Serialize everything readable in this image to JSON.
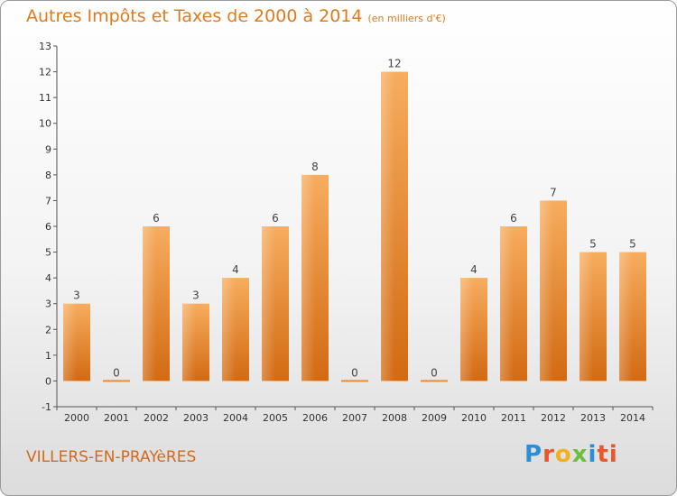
{
  "chart_data": {
    "type": "bar",
    "title": "Autres Impôts et Taxes de 2000 à 2014",
    "subtitle": "(en milliers d'€)",
    "categories": [
      "2000",
      "2001",
      "2002",
      "2003",
      "2004",
      "2005",
      "2006",
      "2007",
      "2008",
      "2009",
      "2010",
      "2011",
      "2012",
      "2013",
      "2014"
    ],
    "values": [
      3,
      0,
      6,
      3,
      4,
      6,
      8,
      0,
      12,
      0,
      4,
      6,
      7,
      5,
      5
    ],
    "ylim": [
      -1,
      13
    ],
    "yticks": [
      -1,
      0,
      1,
      2,
      3,
      4,
      5,
      6,
      7,
      8,
      9,
      10,
      11,
      12,
      13
    ],
    "grid": false,
    "bar_color": "#f08a2c",
    "bar_color_light": "#f7b063"
  },
  "place_name": "VILLERS-EN-PRAYèRES",
  "logo": {
    "letters": [
      "P",
      "r",
      "o",
      "x",
      "i",
      "ti"
    ]
  }
}
